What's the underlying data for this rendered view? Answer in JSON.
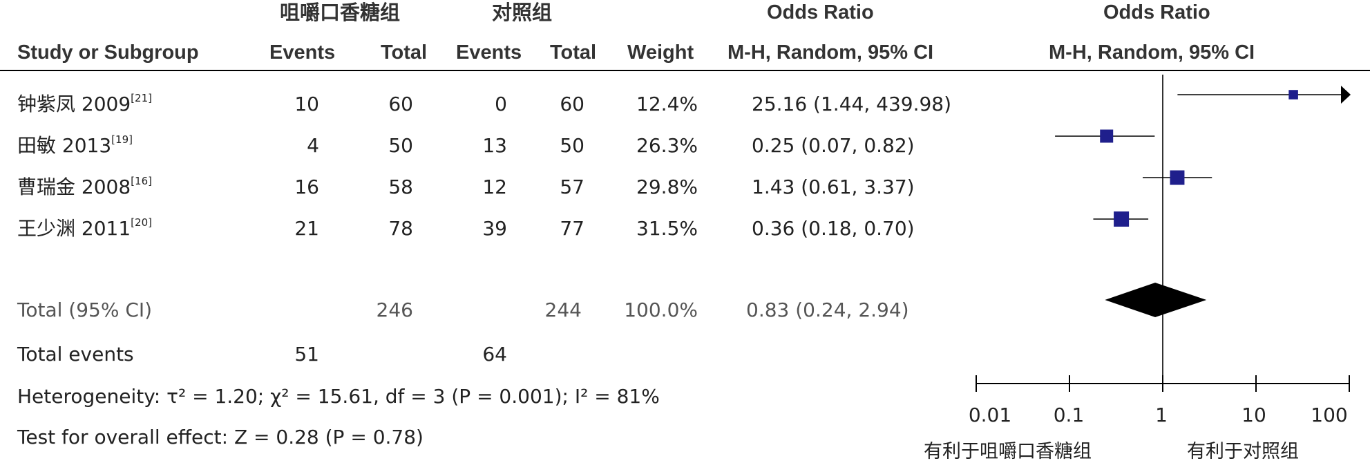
{
  "header": {
    "group1": "咀嚼口香糖组",
    "group2": "对照组",
    "or_left": "Odds Ratio",
    "or_right": "Odds Ratio",
    "col_study": "Study or Subgroup",
    "col_events1": "Events",
    "col_total1": "Total",
    "col_events2": "Events",
    "col_total2": "Total",
    "col_weight": "Weight",
    "col_ci_left": "M-H, Random, 95% CI",
    "col_ci_right": "M-H, Random, 95% CI"
  },
  "rows": [
    {
      "study": "钟紫凤 2009",
      "ref": "[21]",
      "events1": "10",
      "total1": "60",
      "events2": "0",
      "total2": "60",
      "weight": "12.4%",
      "ci": "25.16 (1.44, 439.98)"
    },
    {
      "study": "田敏 2013",
      "ref": "[19]",
      "events1": "4",
      "total1": "50",
      "events2": "13",
      "total2": "50",
      "weight": "26.3%",
      "ci": "0.25 (0.07, 0.82)"
    },
    {
      "study": "曹瑞金 2008",
      "ref": "[16]",
      "events1": "16",
      "total1": "58",
      "events2": "12",
      "total2": "57",
      "weight": "29.8%",
      "ci": "1.43 (0.61, 3.37)"
    },
    {
      "study": "王少渊 2011",
      "ref": "[20]",
      "events1": "21",
      "total1": "78",
      "events2": "39",
      "total2": "77",
      "weight": "31.5%",
      "ci": "0.36 (0.18, 0.70)"
    }
  ],
  "total": {
    "label": "Total (95% CI)",
    "total1": "246",
    "total2": "244",
    "weight": "100.0%",
    "ci": "0.83 (0.24, 2.94)"
  },
  "events": {
    "label": "Total events",
    "events1": "51",
    "events2": "64"
  },
  "heterogeneity": "Heterogeneity: τ² = 1.20; χ² = 15.61, df = 3 (P = 0.001); I² = 81%",
  "overall": "Test for overall effect: Z = 0.28 (P = 0.78)",
  "axis_labels": {
    "left": "有利于咀嚼口香糖组",
    "right": "有利于对照组"
  },
  "colors": {
    "marker": "#1f1f8c",
    "diamond": "#000000",
    "line": "#000000"
  },
  "chart_data": {
    "type": "scatter",
    "scale": "log",
    "xlim": [
      0.01,
      100
    ],
    "ticks": [
      0.01,
      0.1,
      1,
      10,
      100
    ],
    "tick_labels": [
      "0.01",
      "0.1",
      "1",
      "10",
      "100"
    ],
    "null_line": 1,
    "studies": [
      {
        "or": 25.16,
        "lo": 1.44,
        "hi": 439.98,
        "weight": 12.4
      },
      {
        "or": 0.25,
        "lo": 0.07,
        "hi": 0.82,
        "weight": 26.3
      },
      {
        "or": 1.43,
        "lo": 0.61,
        "hi": 3.37,
        "weight": 29.8
      },
      {
        "or": 0.36,
        "lo": 0.18,
        "hi": 0.7,
        "weight": 31.5
      }
    ],
    "pooled": {
      "or": 0.83,
      "lo": 0.24,
      "hi": 2.94
    }
  }
}
